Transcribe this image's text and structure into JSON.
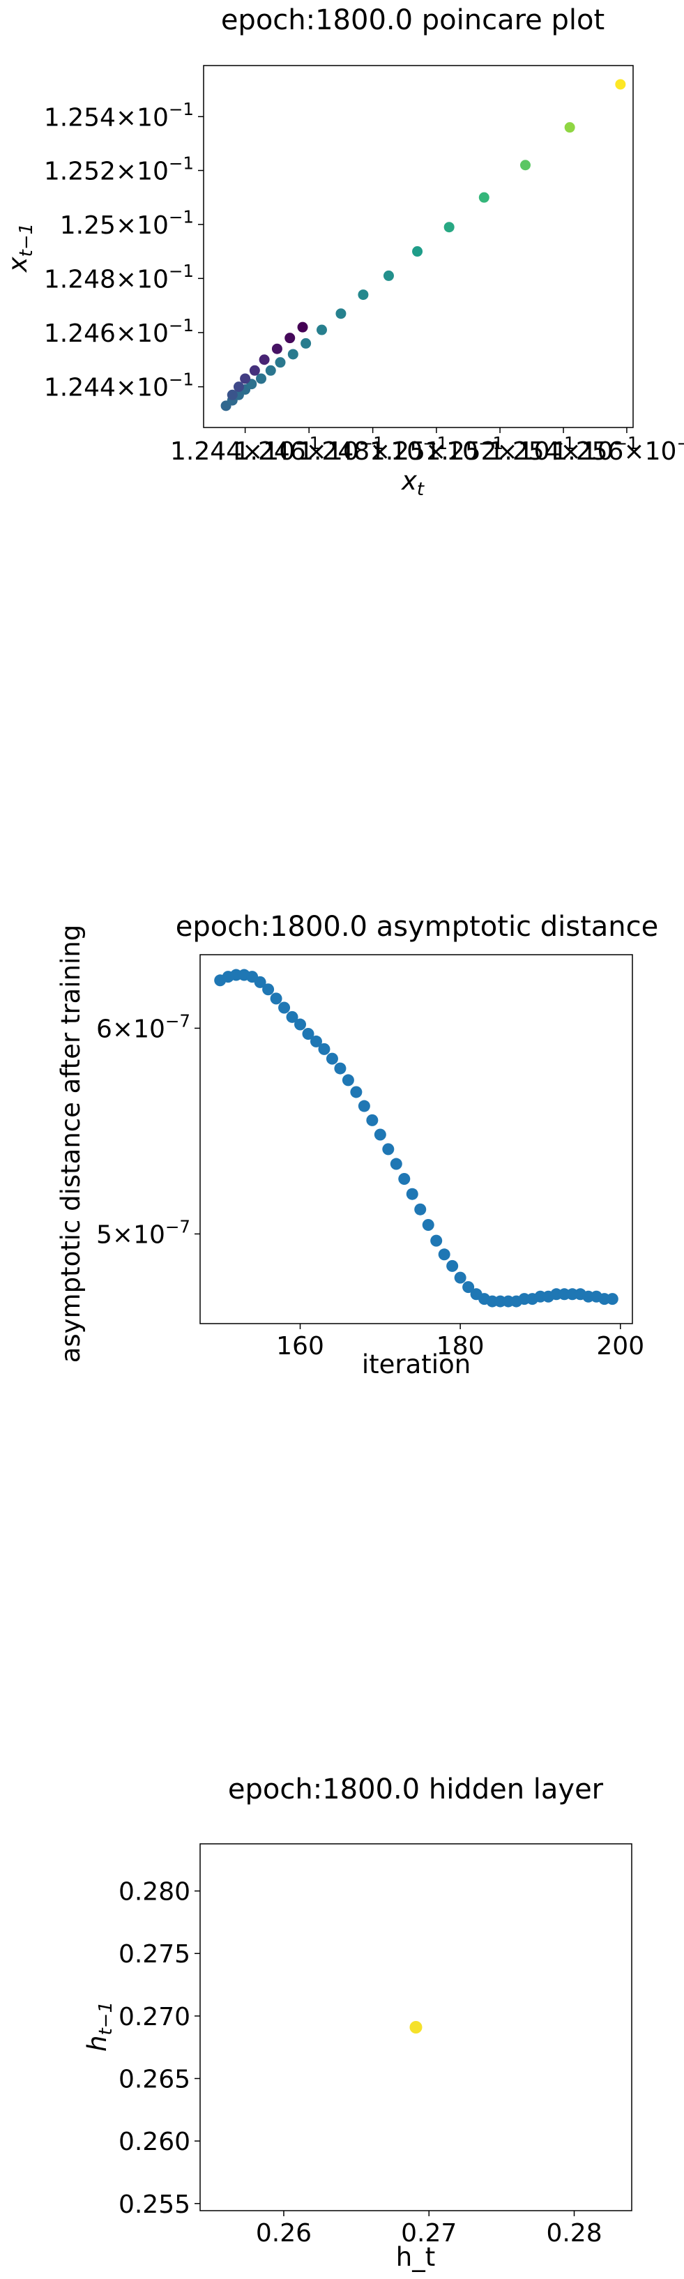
{
  "charts": [
    {
      "type": "scatter",
      "title": "epoch:1800.0 poincare plot",
      "xlabel": "x_t",
      "ylabel": "x_{t-1}",
      "scale": "log",
      "colormap": "viridis",
      "y_ticks": [
        {
          "value": 0.1244,
          "mant": "1.244",
          "exp": "−1"
        },
        {
          "value": 0.1246,
          "mant": "1.246",
          "exp": "−1"
        },
        {
          "value": 0.1248,
          "mant": "1.248",
          "exp": "−1"
        },
        {
          "value": 0.125,
          "mant": "1.25",
          "exp": "−1"
        },
        {
          "value": 0.1252,
          "mant": "1.252",
          "exp": "−1"
        },
        {
          "value": 0.1254,
          "mant": "1.254",
          "exp": "−1"
        }
      ],
      "x_ticks": [
        {
          "value": 0.1244,
          "mant": "1.244",
          "exp": "−1"
        },
        {
          "value": 0.1246,
          "mant": "1.246",
          "exp": "−1"
        },
        {
          "value": 0.1248,
          "mant": "1.248",
          "exp": "−1"
        },
        {
          "value": 0.125,
          "mant": "1.25",
          "exp": "−1"
        },
        {
          "value": 0.1252,
          "mant": "1.252",
          "exp": "−1"
        },
        {
          "value": 0.1254,
          "mant": "1.254",
          "exp": "−1"
        },
        {
          "value": 0.1256,
          "mant": "1.256",
          "exp": "−1"
        }
      ],
      "points": [
        {
          "x": 0.12434,
          "y": 0.12433,
          "c": 0.33
        },
        {
          "x": 0.12436,
          "y": 0.12435,
          "c": 0.34
        },
        {
          "x": 0.12438,
          "y": 0.12437,
          "c": 0.35
        },
        {
          "x": 0.1244,
          "y": 0.12439,
          "c": 0.36
        },
        {
          "x": 0.12442,
          "y": 0.12441,
          "c": 0.37
        },
        {
          "x": 0.12445,
          "y": 0.12443,
          "c": 0.38
        },
        {
          "x": 0.12448,
          "y": 0.12446,
          "c": 0.39
        },
        {
          "x": 0.12451,
          "y": 0.12449,
          "c": 0.4
        },
        {
          "x": 0.12455,
          "y": 0.12452,
          "c": 0.41
        },
        {
          "x": 0.12459,
          "y": 0.12456,
          "c": 0.42
        },
        {
          "x": 0.12464,
          "y": 0.12461,
          "c": 0.43
        },
        {
          "x": 0.1247,
          "y": 0.12467,
          "c": 0.44
        },
        {
          "x": 0.12477,
          "y": 0.12474,
          "c": 0.47
        },
        {
          "x": 0.12485,
          "y": 0.12481,
          "c": 0.5
        },
        {
          "x": 0.12494,
          "y": 0.1249,
          "c": 0.55
        },
        {
          "x": 0.12504,
          "y": 0.12499,
          "c": 0.6
        },
        {
          "x": 0.12515,
          "y": 0.1251,
          "c": 0.66
        },
        {
          "x": 0.12528,
          "y": 0.12522,
          "c": 0.74
        },
        {
          "x": 0.12542,
          "y": 0.12536,
          "c": 0.83
        },
        {
          "x": 0.12558,
          "y": 0.12552,
          "c": 1.0
        },
        {
          "x": 0.12436,
          "y": 0.12437,
          "c": 0.26
        },
        {
          "x": 0.12438,
          "y": 0.1244,
          "c": 0.22
        },
        {
          "x": 0.1244,
          "y": 0.12443,
          "c": 0.18
        },
        {
          "x": 0.12443,
          "y": 0.12446,
          "c": 0.14
        },
        {
          "x": 0.12446,
          "y": 0.1245,
          "c": 0.1
        },
        {
          "x": 0.1245,
          "y": 0.12454,
          "c": 0.05
        },
        {
          "x": 0.12454,
          "y": 0.12458,
          "c": 0.02
        },
        {
          "x": 0.12458,
          "y": 0.12462,
          "c": 0.0
        }
      ]
    },
    {
      "type": "scatter",
      "title": "epoch:1800.0 asymptotic distance",
      "xlabel": "iteration",
      "ylabel": "asymptotic distance after training",
      "scale": "log",
      "color": "#1f77b4",
      "x_ticks": [
        160,
        180,
        200
      ],
      "y_ticks": [
        {
          "value": 5e-07,
          "mant": "5",
          "exp": "−7"
        },
        {
          "value": 6e-07,
          "mant": "6",
          "exp": "−7"
        }
      ],
      "x": [
        150,
        151,
        152,
        153,
        154,
        155,
        156,
        157,
        158,
        159,
        160,
        161,
        162,
        163,
        164,
        165,
        166,
        167,
        168,
        169,
        170,
        171,
        172,
        173,
        174,
        175,
        176,
        177,
        178,
        179,
        180,
        181,
        182,
        183,
        184,
        185,
        186,
        187,
        188,
        189,
        190,
        191,
        192,
        193,
        194,
        195,
        196,
        197,
        198,
        199
      ],
      "y": [
        6.26e-07,
        6.28e-07,
        6.29e-07,
        6.29e-07,
        6.28e-07,
        6.25e-07,
        6.21e-07,
        6.16e-07,
        6.11e-07,
        6.06e-07,
        6.02e-07,
        5.97e-07,
        5.93e-07,
        5.89e-07,
        5.84e-07,
        5.79e-07,
        5.73e-07,
        5.67e-07,
        5.6e-07,
        5.53e-07,
        5.46e-07,
        5.39e-07,
        5.32e-07,
        5.25e-07,
        5.18e-07,
        5.11e-07,
        5.04e-07,
        4.97e-07,
        4.91e-07,
        4.86e-07,
        4.81e-07,
        4.77e-07,
        4.74e-07,
        4.72e-07,
        4.71e-07,
        4.71e-07,
        4.71e-07,
        4.71e-07,
        4.72e-07,
        4.72e-07,
        4.73e-07,
        4.73e-07,
        4.74e-07,
        4.74e-07,
        4.74e-07,
        4.74e-07,
        4.73e-07,
        4.73e-07,
        4.72e-07,
        4.72e-07
      ]
    },
    {
      "type": "scatter",
      "title": "epoch:1800.0 hidden layer",
      "xlabel": "h_t",
      "ylabel": "h_{t-1}",
      "color": "#f5e12a",
      "x_ticks": [
        0.26,
        0.27,
        0.28
      ],
      "y_ticks": [
        0.255,
        0.26,
        0.265,
        0.27,
        0.275,
        0.28
      ],
      "x_labels": [
        "0.26",
        "0.27",
        "0.28"
      ],
      "y_labels": [
        "0.255",
        "0.260",
        "0.265",
        "0.270",
        "0.275",
        "0.280"
      ],
      "points": [
        {
          "x": 0.2691,
          "y": 0.2691
        }
      ]
    }
  ]
}
